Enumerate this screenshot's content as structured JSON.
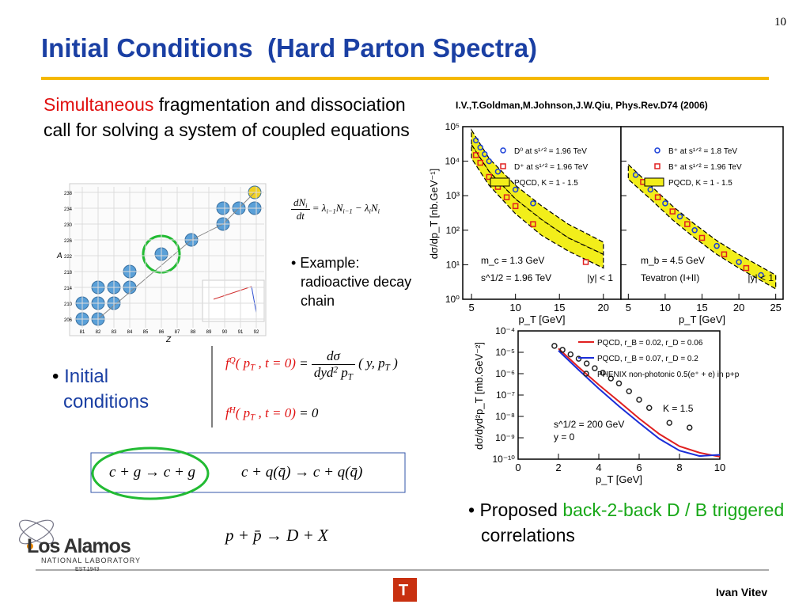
{
  "header": {
    "page_number": "10",
    "title": "Initial Conditions  (Hard Parton Spectra)"
  },
  "intro": {
    "highlight": "Simultaneous",
    "text": "fragmentation and dissociation call for solving a system of coupled equations"
  },
  "reference": "I.V.,T.Goldman,M.Johnson,J.W.Qiu, Phys.Rev.D74 (2006)",
  "nuclide_chart": {
    "x_label": "Z",
    "y_label": "A",
    "xticks": [
      81,
      82,
      83,
      84,
      85,
      86,
      87,
      88,
      89,
      90,
      91,
      92
    ],
    "yticks": [
      238,
      234,
      230,
      226,
      222,
      218,
      214,
      210,
      206
    ]
  },
  "decay_equation": {
    "num": [
      {
        "normal": "dN"
      },
      {
        "sub": "i"
      }
    ],
    "den": [
      {
        "normal": "dt"
      }
    ],
    "rhs": [
      {
        "normal": "= λ"
      },
      {
        "sub": "i−1"
      },
      {
        "normal": "N"
      },
      {
        "sub": "i−1"
      },
      {
        "normal": " − λ"
      },
      {
        "sub": "i"
      },
      {
        "normal": "N"
      },
      {
        "sub": "i"
      }
    ]
  },
  "example": "Example: radioactive decay chain",
  "initial": {
    "bullet": "Initial conditions",
    "eq1": {
      "lhs": [
        {
          "normal": "f"
        },
        {
          "sup": "Q"
        },
        {
          "normal": "( p"
        },
        {
          "sub": "T"
        },
        {
          "normal": " , t = 0)"
        }
      ],
      "eq": "=",
      "num": [
        {
          "normal": "dσ"
        }
      ],
      "den": [
        {
          "normal": "dyd"
        },
        {
          "sup": "2"
        },
        {
          "normal": " p"
        },
        {
          "sub": "T"
        }
      ],
      "rhs": [
        {
          "normal": "( y, p"
        },
        {
          "sub": "T"
        },
        {
          "normal": " )"
        }
      ]
    },
    "eq2": {
      "lhs": [
        {
          "normal": "f"
        },
        {
          "sup": "H"
        },
        {
          "normal": "( p"
        },
        {
          "sub": "T"
        },
        {
          "normal": " , t = 0)"
        }
      ],
      "rhs": [
        {
          "normal": " = 0"
        }
      ]
    }
  },
  "processes": [
    "c + g → c + g",
    "c + q(q̄) → c + q(q̄)"
  ],
  "ppbar": "p + p̄ → D + X",
  "proposed": {
    "lead": "Proposed",
    "highlight": "back-2-back D / B triggered",
    "end": "correlations"
  },
  "plots": [
    {
      "y_label": "dσ/dp_T [nb.GeV⁻¹]",
      "x_label": "p_T [GeV]",
      "ylim": [
        1,
        100000
      ],
      "yticks": [
        {
          "value": 1,
          "label": "10⁰"
        },
        {
          "value": 10,
          "label": "10¹"
        },
        {
          "value": 100,
          "label": "10²"
        },
        {
          "value": 1000,
          "label": "10³"
        },
        {
          "value": 10000,
          "label": "10⁴"
        },
        {
          "value": 100000,
          "label": "10⁵"
        }
      ],
      "panels": [
        {
          "xlim": [
            4,
            22
          ],
          "xticks": [
            5,
            10,
            15,
            20
          ],
          "annotations": [
            "m_c = 1.3 GeV",
            "s^1/2 = 1.96 TeV",
            "|y| < 1"
          ],
          "band": {
            "name": "PQCD, K = 1 - 1.5",
            "color": "#f2ee1a",
            "x": [
              5,
              7,
              10,
              13,
              16,
              20
            ],
            "ranges": [
              {
                "low": [
                  30000,
                  5000,
                  800,
                  200,
                  60,
                  20
                ],
                "high": [
                  80000,
                  12000,
                  2000,
                  500,
                  150,
                  45
                ]
              },
              {
                "low": [
                  12000,
                  2000,
                  300,
                  70,
                  25,
                  8
                ],
                "high": [
                  30000,
                  5000,
                  800,
                  200,
                  60,
                  20
                ]
              }
            ]
          },
          "series": [
            {
              "name": "D⁰ at s¹ᐟ² = 1.96 TeV",
              "color": "#1a3fd8",
              "marker": "circle",
              "x": [
                5.5,
                6,
                6.5,
                7,
                8,
                9,
                10,
                12
              ],
              "values": [
                40000,
                25000,
                16000,
                10000,
                5000,
                2500,
                1500,
                600
              ]
            },
            {
              "name": "D⁺ at s¹ᐟ² = 1.96 TeV",
              "color": "#e02020",
              "marker": "square",
              "x": [
                5.5,
                6,
                7,
                8,
                9,
                10,
                12,
                18
              ],
              "values": [
                15000,
                9000,
                3500,
                1800,
                900,
                500,
                150,
                12
              ]
            }
          ]
        },
        {
          "xlim": [
            4,
            26
          ],
          "xticks": [
            5,
            10,
            15,
            20,
            25
          ],
          "annotations": [
            "m_b = 4.5 GeV",
            "Tevatron (I+II)",
            "|y| < 1"
          ],
          "band": {
            "name": "PQCD, K = 1 - 1.5",
            "color": "#f2ee1a",
            "x": [
              5,
              8,
              11,
              14,
              17,
              20,
              25
            ],
            "ranges": [
              {
                "low": [
                  3000,
                  800,
                  200,
                  60,
                  20,
                  8,
                  2
                ],
                "high": [
                  8000,
                  2000,
                  500,
                  150,
                  50,
                  20,
                  5
                ]
              }
            ]
          },
          "series": [
            {
              "name": "B⁺ at s¹ᐟ² = 1.8 TeV",
              "color": "#1a3fd8",
              "marker": "circle",
              "x": [
                6,
                8,
                10,
                12,
                14,
                17,
                20,
                23
              ],
              "values": [
                4000,
                1500,
                600,
                250,
                100,
                35,
                12,
                5
              ]
            },
            {
              "name": "B⁺ at s¹ᐟ² = 1.96 TeV",
              "color": "#e02020",
              "marker": "square",
              "x": [
                7,
                9,
                11,
                13,
                15,
                18,
                21
              ],
              "values": [
                2500,
                900,
                350,
                150,
                60,
                20,
                8
              ]
            }
          ]
        }
      ]
    },
    {
      "y_label": "dσ/dyd²p_T [mb.GeV⁻²]",
      "x_label": "p_T [GeV]",
      "ylim": [
        1e-10,
        0.0001
      ],
      "yticks": [
        {
          "value": 1e-10,
          "label": "10⁻¹⁰"
        },
        {
          "value": 1e-09,
          "label": "10⁻⁹"
        },
        {
          "value": 1e-08,
          "label": "10⁻⁸"
        },
        {
          "value": 1e-07,
          "label": "10⁻⁷"
        },
        {
          "value": 1e-06,
          "label": "10⁻⁶"
        },
        {
          "value": 1e-05,
          "label": "10⁻⁵"
        },
        {
          "value": 0.0001,
          "label": "10⁻⁴"
        }
      ],
      "panels": [
        {
          "xlim": [
            0,
            10
          ],
          "xticks": [
            0,
            2,
            4,
            6,
            8,
            10
          ],
          "annotations": [
            "K = 1.5",
            "s^1/2 = 200 GeV",
            "y = 0"
          ],
          "series": [
            {
              "name": "PQCD, r_B = 0.02, r_D = 0.06",
              "color": "#e02020",
              "marker": "line",
              "x": [
                2,
                3,
                4,
                5,
                6,
                7,
                8,
                9,
                10
              ],
              "values": [
                1.5e-05,
                2e-06,
                3e-07,
                5e-08,
                8e-09,
                1.5e-09,
                4e-10,
                2e-10,
                1.3e-10
              ]
            },
            {
              "name": "PQCD, r_B = 0.07, r_D = 0.2",
              "color": "#1a2ed8",
              "marker": "line",
              "x": [
                2,
                3,
                4,
                5,
                6,
                7,
                8,
                9,
                10
              ],
              "values": [
                1.2e-05,
                1.5e-06,
                2e-07,
                3e-08,
                5e-09,
                9e-10,
                2.5e-10,
                1.4e-10,
                1.6e-10
              ]
            },
            {
              "name": "PHENIX non-photonic 0.5(e⁺ + e) in p+p",
              "color": "#222222",
              "marker": "circle",
              "x": [
                1.8,
                2.2,
                2.6,
                3.0,
                3.4,
                3.8,
                4.2,
                4.6,
                5.0,
                5.5,
                6.0,
                6.5,
                7.5,
                8.5
              ],
              "values": [
                2e-05,
                1.3e-05,
                8e-06,
                5e-06,
                3e-06,
                1.8e-06,
                1.1e-06,
                6e-07,
                3.5e-07,
                1.5e-07,
                6e-08,
                2.5e-08,
                5e-09,
                3e-09
              ]
            }
          ]
        }
      ]
    }
  ],
  "footer": {
    "author": "Ivan Vitev",
    "division_logo": "T",
    "lab": {
      "name": "Los Alamos",
      "sub": "NATIONAL LABORATORY",
      "est": "EST.1943"
    }
  }
}
